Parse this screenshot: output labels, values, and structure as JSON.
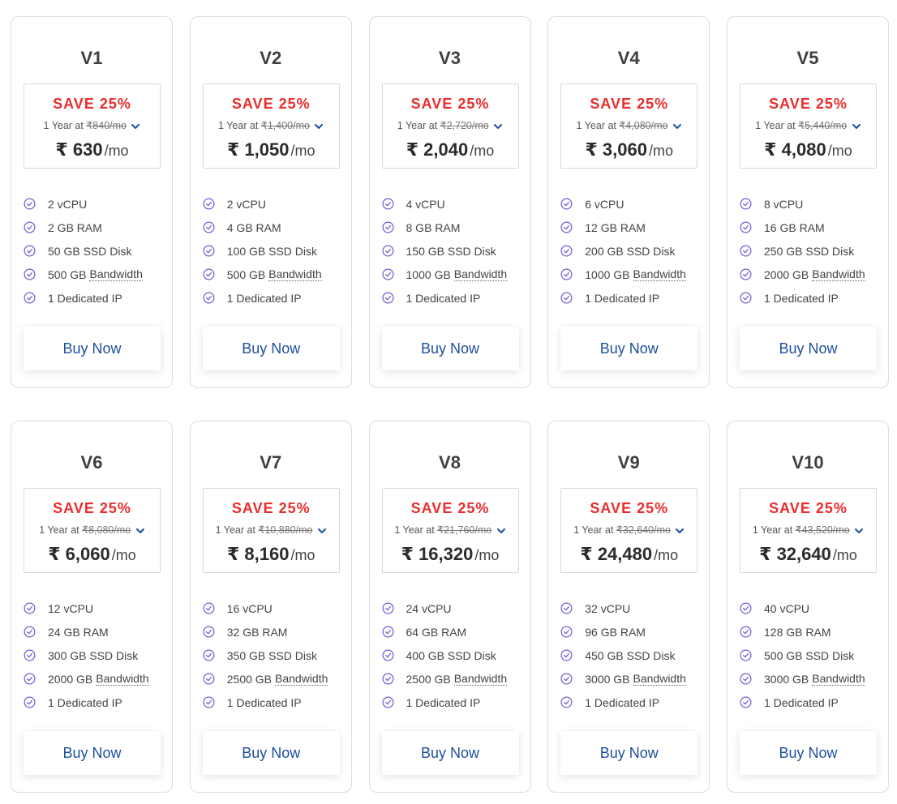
{
  "currency_symbol": "₹",
  "colors": {
    "save": "#ea2c2c",
    "button_text": "#1d4f9e",
    "check": "#6b5fd6"
  },
  "icons": {
    "feature": "check-circle-icon",
    "term_toggle": "chevron-down-icon"
  },
  "plans": [
    {
      "name": "V1",
      "save": "SAVE 25%",
      "term": "1 Year at",
      "original": "840/mo",
      "price": "630",
      "unit": "/mo",
      "features": [
        "2 vCPU",
        "2 GB RAM",
        "50 GB SSD Disk",
        "500 GB",
        "1 Dedicated IP"
      ],
      "bandwidth_label": "Bandwidth",
      "button": "Buy Now"
    },
    {
      "name": "V2",
      "save": "SAVE 25%",
      "term": "1 Year at",
      "original": "1,400/mo",
      "price": "1,050",
      "unit": "/mo",
      "features": [
        "2 vCPU",
        "4 GB RAM",
        "100 GB SSD Disk",
        "500 GB",
        "1 Dedicated IP"
      ],
      "bandwidth_label": "Bandwidth",
      "button": "Buy Now"
    },
    {
      "name": "V3",
      "save": "SAVE 25%",
      "term": "1 Year at",
      "original": "2,720/mo",
      "price": "2,040",
      "unit": "/mo",
      "features": [
        "4 vCPU",
        "8 GB RAM",
        "150 GB SSD Disk",
        "1000 GB",
        "1 Dedicated IP"
      ],
      "bandwidth_label": "Bandwidth",
      "button": "Buy Now"
    },
    {
      "name": "V4",
      "save": "SAVE 25%",
      "term": "1 Year at",
      "original": "4,080/mo",
      "price": "3,060",
      "unit": "/mo",
      "features": [
        "6 vCPU",
        "12 GB RAM",
        "200 GB SSD Disk",
        "1000 GB",
        "1 Dedicated IP"
      ],
      "bandwidth_label": "Bandwidth",
      "button": "Buy Now"
    },
    {
      "name": "V5",
      "save": "SAVE 25%",
      "term": "1 Year at",
      "original": "5,440/mo",
      "price": "4,080",
      "unit": "/mo",
      "features": [
        "8 vCPU",
        "16 GB RAM",
        "250 GB SSD Disk",
        "2000 GB",
        "1 Dedicated IP"
      ],
      "bandwidth_label": "Bandwidth",
      "button": "Buy Now"
    },
    {
      "name": "V6",
      "save": "SAVE 25%",
      "term": "1 Year at",
      "original": "8,080/mo",
      "price": "6,060",
      "unit": "/mo",
      "features": [
        "12 vCPU",
        "24 GB RAM",
        "300 GB SSD Disk",
        "2000 GB",
        "1 Dedicated IP"
      ],
      "bandwidth_label": "Bandwidth",
      "button": "Buy Now"
    },
    {
      "name": "V7",
      "save": "SAVE 25%",
      "term": "1 Year at",
      "original": "10,880/mo",
      "price": "8,160",
      "unit": "/mo",
      "features": [
        "16 vCPU",
        "32 GB RAM",
        "350 GB SSD Disk",
        "2500 GB",
        "1 Dedicated IP"
      ],
      "bandwidth_label": "Bandwidth",
      "button": "Buy Now"
    },
    {
      "name": "V8",
      "save": "SAVE 25%",
      "term": "1 Year at",
      "original": "21,760/mo",
      "price": "16,320",
      "unit": "/mo",
      "features": [
        "24 vCPU",
        "64 GB RAM",
        "400 GB SSD Disk",
        "2500 GB",
        "1 Dedicated IP"
      ],
      "bandwidth_label": "Bandwidth",
      "button": "Buy Now"
    },
    {
      "name": "V9",
      "save": "SAVE 25%",
      "term": "1 Year at",
      "original": "32,640/mo",
      "price": "24,480",
      "unit": "/mo",
      "features": [
        "32 vCPU",
        "96 GB RAM",
        "450 GB SSD Disk",
        "3000 GB",
        "1 Dedicated IP"
      ],
      "bandwidth_label": "Bandwidth",
      "button": "Buy Now"
    },
    {
      "name": "V10",
      "save": "SAVE 25%",
      "term": "1 Year at",
      "original": "43,520/mo",
      "price": "32,640",
      "unit": "/mo",
      "features": [
        "40 vCPU",
        "128 GB RAM",
        "500 GB SSD Disk",
        "3000 GB",
        "1 Dedicated IP"
      ],
      "bandwidth_label": "Bandwidth",
      "button": "Buy Now"
    }
  ]
}
